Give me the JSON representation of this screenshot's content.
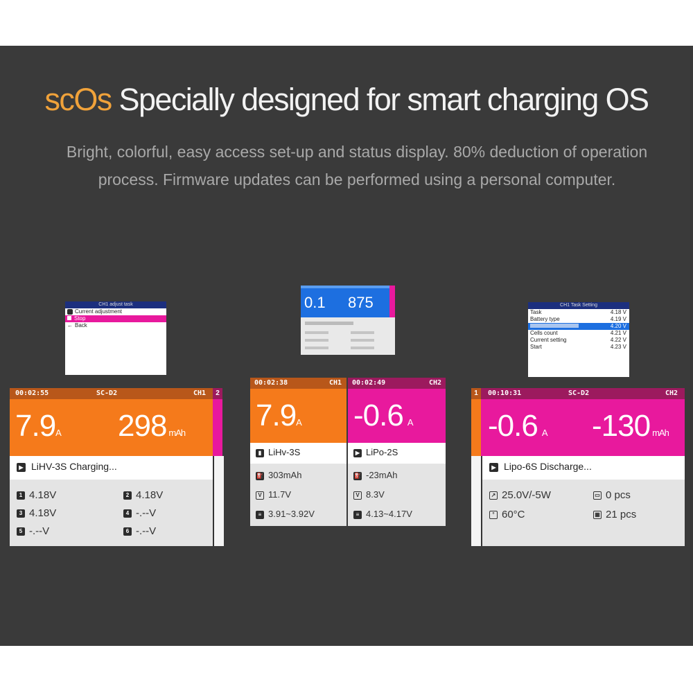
{
  "colors": {
    "orange": "#f57a1b",
    "magenta": "#e8199d",
    "dark_orange": "#b8571a",
    "dark_magenta": "#9c1a5e",
    "brand": "#f0a23a",
    "navy": "#1c2f7e",
    "blue": "#1d6fe0"
  },
  "header": {
    "brand": "scOs",
    "title": "Specially designed for smart charging OS",
    "subtitle_line1": "Bright, colorful, easy access set-up and status display. 80% deduction of operation",
    "subtitle_line2": "process. Firmware updates can be performed using a personal computer."
  },
  "menu_left": {
    "title": "CH1 adjust task",
    "items": [
      {
        "label": "Current adjustment"
      },
      {
        "label": "Stop"
      },
      {
        "label": "Back"
      }
    ]
  },
  "preview_center": {
    "current": "0.1",
    "capacity": "875"
  },
  "menu_right": {
    "title": "CH1 Task Setting",
    "items": [
      {
        "label": "Task",
        "value": "4.18 V"
      },
      {
        "label": "Battery type",
        "value": "4.19 V"
      },
      {
        "label": "",
        "value": "4.20 V"
      },
      {
        "label": "Cells count",
        "value": "4.21 V"
      },
      {
        "label": "Current setting",
        "value": "4.22 V"
      },
      {
        "label": "Start",
        "value": "4.23 V"
      }
    ]
  },
  "screen_left": {
    "time": "00:02:55",
    "model": "SC-D2",
    "channel": "CH1",
    "side_tab": "2",
    "current": "7.9",
    "current_unit": "A",
    "capacity": "298",
    "capacity_unit": "mAh",
    "status": "LiHV-3S Charging...",
    "cells": [
      {
        "n": "1",
        "v": "4.18V"
      },
      {
        "n": "2",
        "v": "4.18V"
      },
      {
        "n": "3",
        "v": "4.18V"
      },
      {
        "n": "4",
        "v": "-.--V"
      },
      {
        "n": "5",
        "v": "-.--V"
      },
      {
        "n": "6",
        "v": "-.--V"
      }
    ]
  },
  "screen_center": {
    "ch1": {
      "time": "00:02:38",
      "channel": "CH1",
      "current": "7.9",
      "unit": "A",
      "battery": "LiHv-3S",
      "capacity": "303mAh",
      "voltage": "11.7V",
      "range": "3.91~3.92V"
    },
    "ch2": {
      "time": "00:02:49",
      "channel": "CH2",
      "current": "-0.6",
      "unit": "A",
      "battery": "LiPo-2S",
      "capacity": "-23mAh",
      "voltage": "8.3V",
      "range": "4.13~4.17V"
    }
  },
  "screen_right": {
    "side_tab": "1",
    "time": "00:10:31",
    "model": "SC-D2",
    "channel": "CH2",
    "current": "-0.6",
    "current_unit": "A",
    "capacity": "-130",
    "capacity_unit": "mAh",
    "status": "Lipo-6S Discharge...",
    "power": "25.0V/-5W",
    "temperature": "60°C",
    "count1": "0 pcs",
    "count2": "21 pcs"
  }
}
